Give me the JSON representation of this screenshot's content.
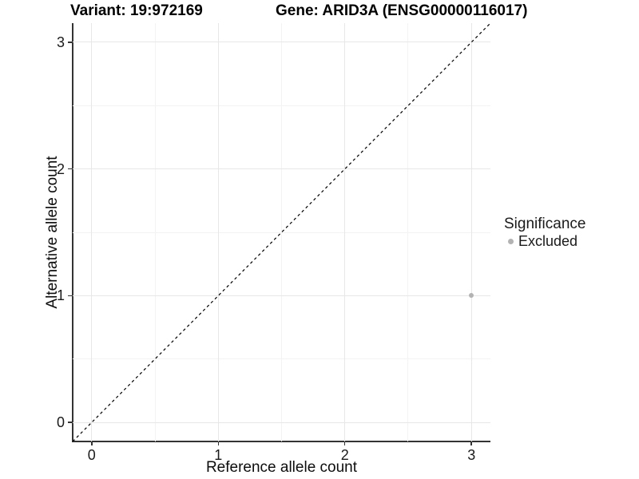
{
  "titles": {
    "variant": "Variant: 19:972169",
    "gene": "Gene: ARID3A (ENSG00000116017)"
  },
  "chart_data": {
    "type": "scatter",
    "xlabel": "Reference allele count",
    "ylabel": "Alternative allele count",
    "x_ticks": [
      "0",
      "1",
      "2",
      "3"
    ],
    "y_ticks": [
      "0",
      "1",
      "2",
      "3"
    ],
    "x_tick_values": [
      0,
      1,
      2,
      3
    ],
    "y_tick_values": [
      0,
      1,
      2,
      3
    ],
    "xlim": [
      -0.15,
      3.15
    ],
    "ylim": [
      -0.15,
      3.15
    ],
    "grid": "major+minor",
    "reference_line": {
      "type": "identity y=x",
      "style": "dashed",
      "color": "#000000"
    },
    "series": [
      {
        "name": "Excluded",
        "color": "#b3b3b3",
        "points": [
          {
            "x": 3,
            "y": 1
          }
        ]
      }
    ],
    "legend": {
      "title": "Significance",
      "position": "right",
      "items": [
        {
          "label": "Excluded",
          "color": "#b3b3b3"
        }
      ]
    },
    "style_colors": {
      "axis_line": "#333333",
      "grid_major": "#e7e7e7",
      "grid_minor": "#f3f3f3",
      "background": "#ffffff"
    }
  }
}
